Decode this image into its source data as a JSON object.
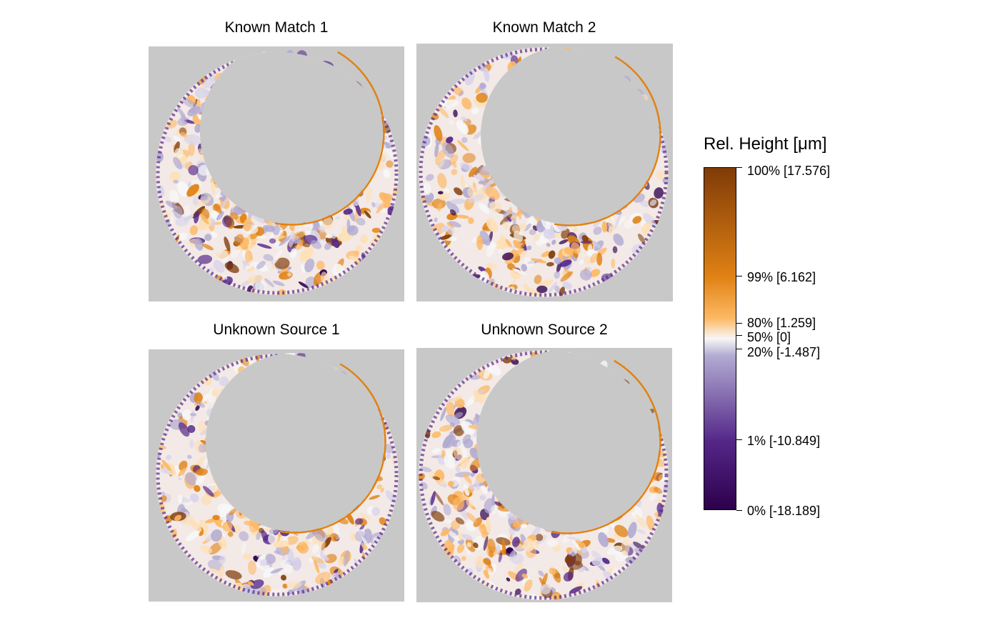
{
  "panels": [
    {
      "title": "Known Match 1"
    },
    {
      "title": "Known Match 2"
    },
    {
      "title": "Unknown Source 1"
    },
    {
      "title": "Unknown Source 2"
    }
  ],
  "legend": {
    "title": "Rel. Height [μm]",
    "ticks": [
      {
        "label": "100% [17.576]",
        "percent": 100,
        "value": 17.576
      },
      {
        "label": "99% [6.162]",
        "percent": 99,
        "value": 6.162
      },
      {
        "label": "80% [1.259]",
        "percent": 80,
        "value": 1.259
      },
      {
        "label": "50% [0]",
        "percent": 50,
        "value": 0
      },
      {
        "label": "20% [-1.487]",
        "percent": 20,
        "value": -1.487
      },
      {
        "label": "1% [-10.849]",
        "percent": 1,
        "value": -10.849
      },
      {
        "label": "0% [-18.189]",
        "percent": 0,
        "value": -18.189
      }
    ],
    "colors": {
      "max": "#7f3b08",
      "high": "#e08214",
      "mid_high": "#fdb863",
      "zero": "#f7f7f7",
      "mid_low": "#b2abd2",
      "low": "#542788",
      "min": "#2d004b"
    }
  },
  "background_color": "#c8c8c8"
}
